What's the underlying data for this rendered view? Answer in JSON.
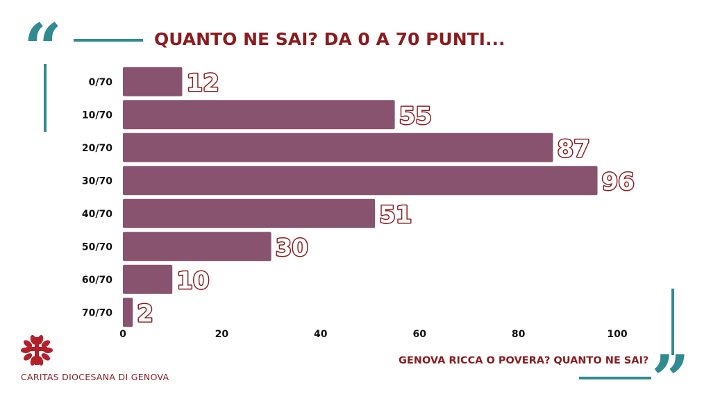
{
  "title": "QUANTO NE SAI? DA 0 A 70 PUNTI...",
  "subtitle": "GENOVA RICCA O POVERA? QUANTO NE SAI?",
  "organization": "CARITAS DIOCESANA DI GENOVA",
  "decor": {
    "quote_open": "“",
    "quote_close": "”"
  },
  "colors": {
    "bar": "#88536f",
    "title": "#8a1c1f",
    "accent_teal": "#2f8a92",
    "label_outline": "#8a1c1f",
    "logo_red": "#b3202a"
  },
  "chart_data": {
    "type": "bar",
    "orientation": "horizontal",
    "categories": [
      "0/70",
      "10/70",
      "20/70",
      "30/70",
      "40/70",
      "50/70",
      "60/70",
      "70/70"
    ],
    "values": [
      12,
      55,
      87,
      96,
      51,
      30,
      10,
      2
    ],
    "data_labels": [
      "12",
      "55",
      "87",
      "96",
      "51",
      "30",
      "10",
      "2"
    ],
    "xlim": [
      0,
      100
    ],
    "xticks": [
      "0",
      "20",
      "40",
      "60",
      "80",
      "100"
    ],
    "grid": false,
    "legend": "none"
  }
}
